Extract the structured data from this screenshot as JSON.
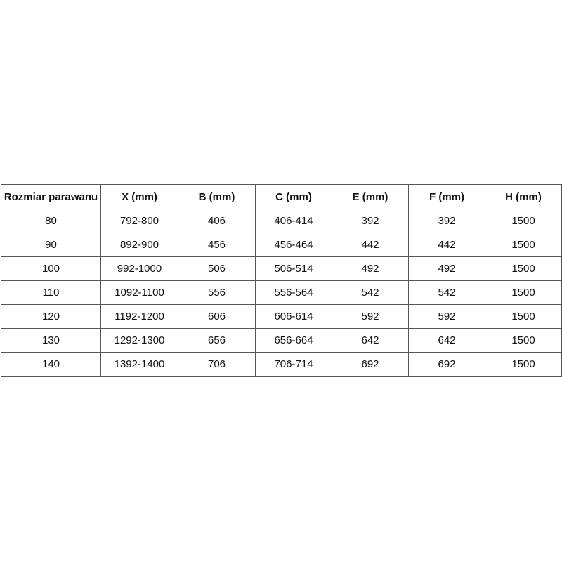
{
  "table": {
    "headers": [
      "Rozmiar parawanu",
      "X (mm)",
      "B (mm)",
      "C (mm)",
      "E (mm)",
      "F (mm)",
      "H (mm)"
    ],
    "rows": [
      [
        "80",
        "792-800",
        "406",
        "406-414",
        "392",
        "392",
        "1500"
      ],
      [
        "90",
        "892-900",
        "456",
        "456-464",
        "442",
        "442",
        "1500"
      ],
      [
        "100",
        "992-1000",
        "506",
        "506-514",
        "492",
        "492",
        "1500"
      ],
      [
        "110",
        "1092-1100",
        "556",
        "556-564",
        "542",
        "542",
        "1500"
      ],
      [
        "120",
        "1192-1200",
        "606",
        "606-614",
        "592",
        "592",
        "1500"
      ],
      [
        "130",
        "1292-1300",
        "656",
        "656-664",
        "642",
        "642",
        "1500"
      ],
      [
        "140",
        "1392-1400",
        "706",
        "706-714",
        "692",
        "692",
        "1500"
      ]
    ]
  }
}
